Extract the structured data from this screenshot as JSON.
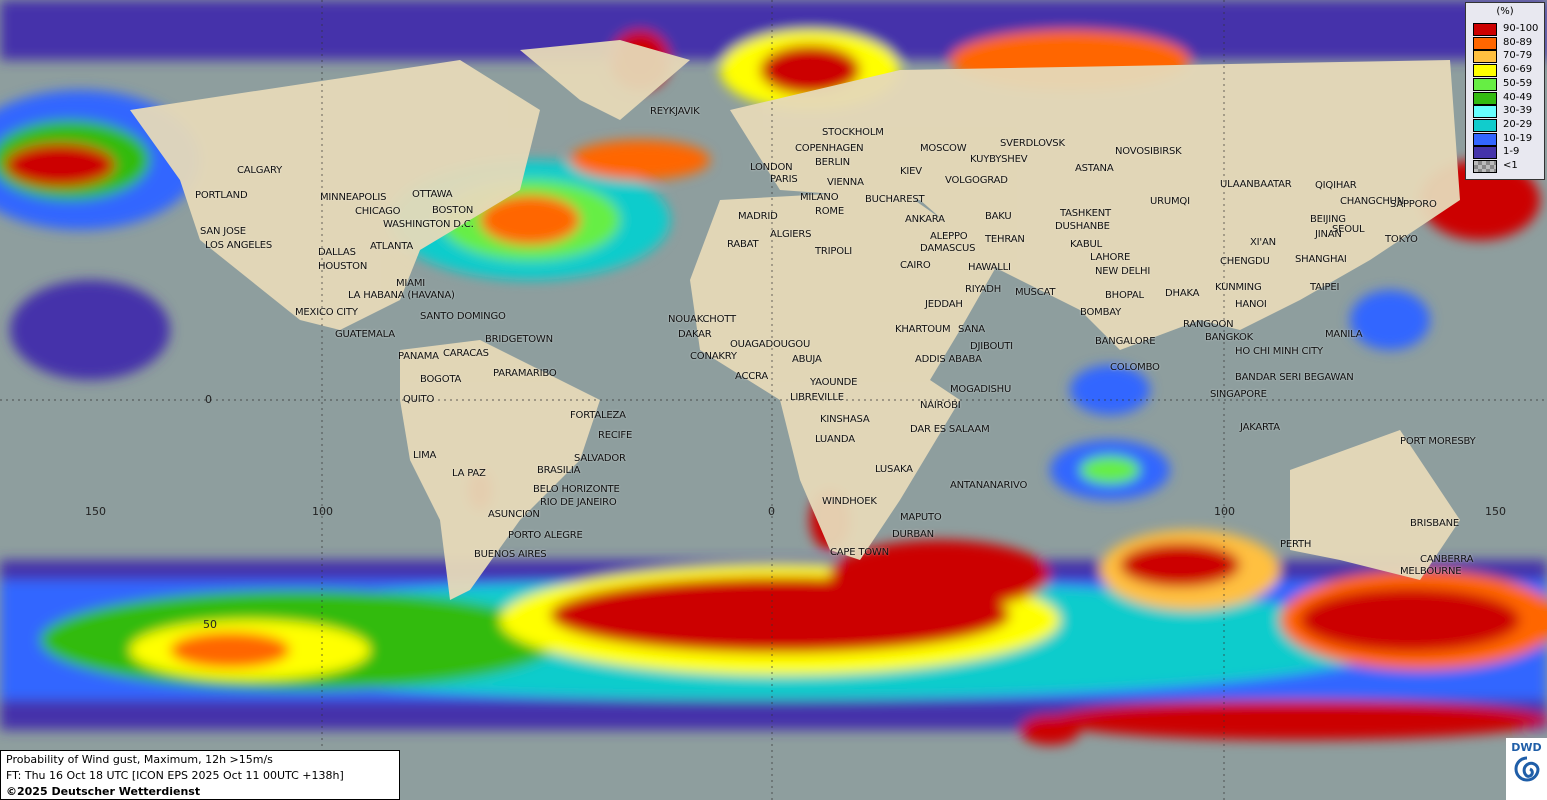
{
  "info": {
    "title": "Probability of Wind gust, Maximum, 12h >15m/s",
    "forecast": "FT: Thu 16 Oct 18 UTC [ICON EPS 2025 Oct 11 00UTC +138h]",
    "copyright": "©2025 Deutscher Wetterdienst"
  },
  "logo": {
    "text": "DWD"
  },
  "legend": {
    "unit": "(%)",
    "classes": [
      {
        "label": "90-100",
        "color": "#cc0000"
      },
      {
        "label": "80-89",
        "color": "#ff6600"
      },
      {
        "label": "70-79",
        "color": "#ffc040"
      },
      {
        "label": "60-69",
        "color": "#ffff00"
      },
      {
        "label": "50-59",
        "color": "#66ee44"
      },
      {
        "label": "40-49",
        "color": "#33bb11"
      },
      {
        "label": "30-39",
        "color": "#66ffff"
      },
      {
        "label": "20-29",
        "color": "#11cccc"
      },
      {
        "label": "10-19",
        "color": "#3366ff"
      },
      {
        "label": "1-9",
        "color": "#4433aa"
      },
      {
        "label": "<1",
        "color": "#999999"
      }
    ]
  },
  "grid_labels": [
    "0",
    "150",
    "100",
    "0",
    "100",
    "150",
    "50"
  ],
  "cities": [
    "REYKJAVIK",
    "STOCKHOLM",
    "COPENHAGEN",
    "LONDON",
    "PARIS",
    "BERLIN",
    "MOSCOW",
    "KIEV",
    "SVERDLOVSK",
    "NOVOSIBIRSK",
    "KUYBYSHEV",
    "ASTANA",
    "VIENNA",
    "VOLGOGRAD",
    "ULAANBAATAR",
    "QIQIHAR",
    "MADRID",
    "MILANO",
    "ROME",
    "BUCHAREST",
    "ANKARA",
    "BAKU",
    "TASHKENT",
    "DUSHANBE",
    "URUMQI",
    "CHANGCHUN",
    "SAPPORO",
    "BEIJING",
    "SEOUL",
    "TOKYO",
    "JINAN",
    "ALGIERS",
    "RABAT",
    "TRIPOLI",
    "ALEPPO",
    "DAMASCUS",
    "TEHRAN",
    "KABUL",
    "LAHORE",
    "NEW DELHI",
    "XI'AN",
    "CHENGDU",
    "SHANGHAI",
    "CAIRO",
    "HAWALLI",
    "RIYADH",
    "MUSCAT",
    "JEDDAH",
    "BHOPAL",
    "DHAKA",
    "KUNMING",
    "TAIPEI",
    "HANOI",
    "BOMBAY",
    "RANGOON",
    "BANGKOK",
    "MANILA",
    "KHARTOUM",
    "SANA",
    "DJIBOUTI",
    "ADDIS ABABA",
    "BANGALORE",
    "HO CHI MINH CITY",
    "COLOMBO",
    "BANDAR SERI BEGAWAN",
    "SINGAPORE",
    "MOGADISHU",
    "NAIROBI",
    "JAKARTA",
    "PORT MORESBY",
    "DAR ES SALAAM",
    "NOUAKCHOTT",
    "DAKAR",
    "CONAKRY",
    "OUAGADOUGOU",
    "ABUJA",
    "ACCRA",
    "YAOUNDE",
    "LIBREVILLE",
    "KINSHASA",
    "LUANDA",
    "LUSAKA",
    "ANTANANARIVO",
    "WINDHOEK",
    "MAPUTO",
    "DURBAN",
    "CAPE TOWN",
    "PERTH",
    "BRISBANE",
    "CANBERRA",
    "MELBOURNE",
    "CALGARY",
    "PORTLAND",
    "MINNEAPOLIS",
    "OTTAWA",
    "CHICAGO",
    "BOSTON",
    "WASHINGTON D.C.",
    "SAN JOSE",
    "LOS ANGELES",
    "ATLANTA",
    "DALLAS",
    "HOUSTON",
    "MIAMI",
    "LA HABANA (HAVANA)",
    "SANTO DOMINGO",
    "MEXICO CITY",
    "GUATEMALA",
    "BRIDGETOWN",
    "PANAMA",
    "CARACAS",
    "BOGOTA",
    "PARAMARIBO",
    "QUITO",
    "FORTALEZA",
    "RECIFE",
    "LIMA",
    "SALVADOR",
    "LA PAZ",
    "BRASILIA",
    "BELO HORIZONTE",
    "RIO DE JANEIRO",
    "ASUNCION",
    "PORTO ALEGRE",
    "BUENOS AIRES"
  ]
}
